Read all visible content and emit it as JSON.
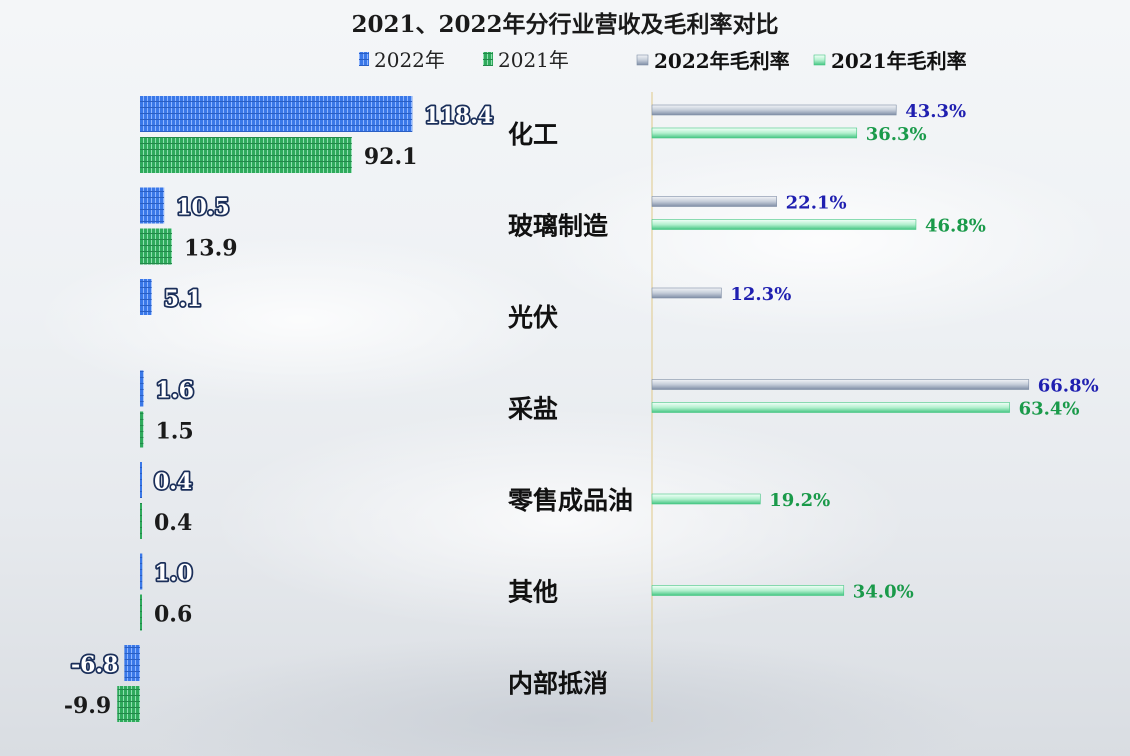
{
  "chart_data": {
    "type": "bar",
    "title": "2021、2022年分行业营收及毛利率对比",
    "categories": [
      "化工",
      "玻璃制造",
      "光伏",
      "采盐",
      "零售成品油",
      "其他",
      "内部抵消"
    ],
    "series": [
      {
        "name": "2022年",
        "group": "revenue",
        "color": "#3a78e8",
        "values": [
          118.4,
          10.5,
          5.1,
          1.6,
          0.4,
          1.0,
          -6.8
        ]
      },
      {
        "name": "2021年",
        "group": "revenue",
        "color": "#2faa5c",
        "values": [
          92.1,
          13.9,
          null,
          1.5,
          0.4,
          0.6,
          -9.9
        ]
      },
      {
        "name": "2022年毛利率",
        "group": "margin",
        "color": "#8f9db2",
        "values": [
          43.3,
          22.1,
          12.3,
          66.8,
          null,
          null,
          null
        ]
      },
      {
        "name": "2021年毛利率",
        "group": "margin",
        "color": "#5fd69a",
        "values": [
          36.3,
          46.8,
          null,
          63.4,
          19.2,
          34.0,
          null
        ]
      }
    ],
    "value_labels": {
      "revenue_2022": [
        "118.4",
        "10.5",
        "5.1",
        "1.6",
        "0.4",
        "1.0",
        "-6.8"
      ],
      "revenue_2021": [
        "92.1",
        "13.9",
        "",
        "1.5",
        "0.4",
        "0.6",
        "-9.9"
      ],
      "margin_2022": [
        "43.3%",
        "22.1%",
        "12.3%",
        "66.8%",
        "",
        "",
        ""
      ],
      "margin_2021": [
        "36.3%",
        "46.8%",
        "",
        "63.4%",
        "19.2%",
        "34.0%",
        ""
      ]
    },
    "legend": {
      "placement": "top",
      "entries": [
        "2022年",
        "2021年",
        "2022年毛利率",
        "2021年毛利率"
      ]
    },
    "label_colors": {
      "revenue_2022": "#ffffff",
      "revenue_2022_stroke": "#1b2f5a",
      "revenue_2021": "#1a1a1a",
      "margin_2022": "#1f1fb0",
      "margin_2021": "#1a9a4a"
    },
    "grid": false
  }
}
